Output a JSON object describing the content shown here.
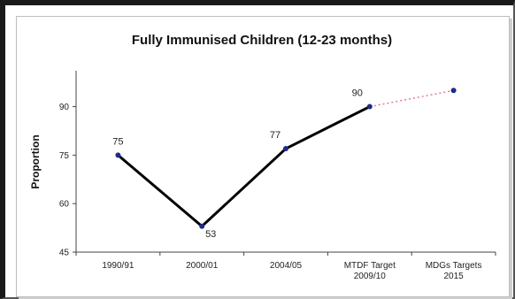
{
  "chart_data": {
    "type": "line",
    "title": "Fully Immunised Children (12-23 months)",
    "xlabel": "",
    "ylabel": "Proportion",
    "categories": [
      [
        "1990/91"
      ],
      [
        "2000/01"
      ],
      [
        "2004/05"
      ],
      [
        "MTDF Target",
        "2009/10"
      ],
      [
        "MDGs Targets",
        "2015"
      ]
    ],
    "yticks": [
      45,
      60,
      75,
      90
    ],
    "ylim": [
      45,
      100
    ],
    "series": [
      {
        "values": [
          75,
          53,
          77,
          90,
          95
        ],
        "data_labels": [
          "75",
          "53",
          "77",
          "90",
          ""
        ]
      }
    ],
    "actual_point_count": 3,
    "grid": false,
    "legend": "none",
    "colors": {
      "actual_line": "#000000",
      "target_line": "#e07a9a",
      "marker": "#1f2a8a"
    }
  }
}
